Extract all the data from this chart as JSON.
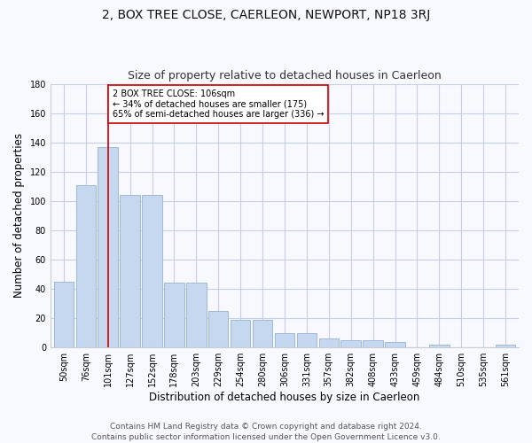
{
  "title": "2, BOX TREE CLOSE, CAERLEON, NEWPORT, NP18 3RJ",
  "subtitle": "Size of property relative to detached houses in Caerleon",
  "xlabel": "Distribution of detached houses by size in Caerleon",
  "ylabel": "Number of detached properties",
  "categories": [
    "50sqm",
    "76sqm",
    "101sqm",
    "127sqm",
    "152sqm",
    "178sqm",
    "203sqm",
    "229sqm",
    "254sqm",
    "280sqm",
    "306sqm",
    "331sqm",
    "357sqm",
    "382sqm",
    "408sqm",
    "433sqm",
    "459sqm",
    "484sqm",
    "510sqm",
    "535sqm",
    "561sqm"
  ],
  "values": [
    45,
    111,
    137,
    104,
    104,
    44,
    44,
    25,
    19,
    19,
    10,
    10,
    6,
    5,
    5,
    4,
    0,
    2,
    0,
    0,
    2
  ],
  "bar_color": "#c5d8f0",
  "bar_edge_color": "#a0b8d8",
  "vline_x": 2,
  "vline_color": "#cc0000",
  "annotation_text": "2 BOX TREE CLOSE: 106sqm\n← 34% of detached houses are smaller (175)\n65% of semi-detached houses are larger (336) →",
  "annotation_box_color": "white",
  "annotation_box_edge": "#cc0000",
  "ylim": [
    0,
    180
  ],
  "yticks": [
    0,
    20,
    40,
    60,
    80,
    100,
    120,
    140,
    160,
    180
  ],
  "footnote": "Contains HM Land Registry data © Crown copyright and database right 2024.\nContains public sector information licensed under the Open Government Licence v3.0.",
  "title_fontsize": 10,
  "subtitle_fontsize": 9,
  "xlabel_fontsize": 8.5,
  "ylabel_fontsize": 8.5,
  "tick_fontsize": 7,
  "footnote_fontsize": 6.5,
  "background_color": "#f8f8ff",
  "grid_color": "#c8d0e8"
}
